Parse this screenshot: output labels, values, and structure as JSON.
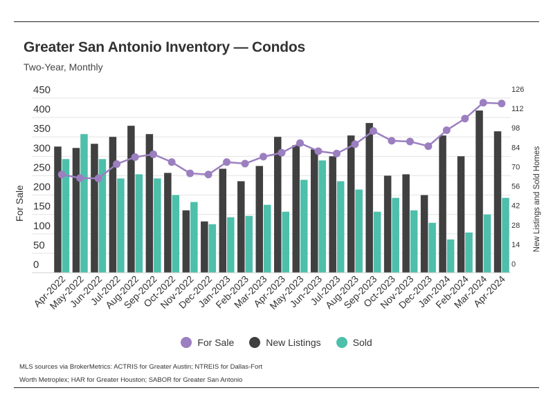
{
  "header": {
    "title": "Greater San Antonio Inventory — Condos",
    "subtitle": "Two-Year, Monthly"
  },
  "legend": {
    "items": [
      {
        "label": "For Sale",
        "color": "#9b7fc0"
      },
      {
        "label": "New Listings",
        "color": "#404040"
      },
      {
        "label": "Sold",
        "color": "#4dbfaa"
      }
    ]
  },
  "source": "MLS sources via BrokerMetrics: ACTRIS for Greater Austin; NTREIS for Dallas-Fort Worth Metroplex; HAR for Greater Houston; SABOR for Greater San Antonio",
  "chart_data": {
    "type": "bar",
    "categories": [
      "Apr-2022",
      "May-2022",
      "Jun-2022",
      "Jul-2022",
      "Aug-2022",
      "Sep-2022",
      "Oct-2022",
      "Nov-2022",
      "Dec-2022",
      "Jan-2023",
      "Feb-2023",
      "Mar-2023",
      "Apr-2023",
      "May-2023",
      "Jun-2023",
      "Jul-2023",
      "Aug-2023",
      "Sep-2023",
      "Oct-2023",
      "Nov-2023",
      "Dec-2023",
      "Jan-2024",
      "Feb-2024",
      "Mar-2024",
      "Apr-2024"
    ],
    "series": [
      {
        "name": "For Sale",
        "type": "line",
        "axis": "left",
        "color": "#9b7fc0",
        "values": [
          253,
          244,
          243,
          280,
          298,
          305,
          285,
          256,
          253,
          285,
          281,
          299,
          309,
          334,
          313,
          307,
          331,
          365,
          340,
          338,
          326,
          367,
          397,
          438,
          436
        ]
      },
      {
        "name": "New Listings",
        "type": "bar",
        "axis": "right",
        "color": "#404040",
        "values": [
          91,
          90,
          93,
          98,
          106,
          100,
          72,
          45,
          37,
          75,
          66,
          77,
          98,
          92,
          89,
          84,
          99,
          108,
          70,
          71,
          56,
          99,
          84,
          117,
          102
        ]
      },
      {
        "name": "Sold",
        "type": "bar",
        "axis": "right",
        "color": "#4dbfaa",
        "values": [
          82,
          100,
          82,
          68,
          71,
          68,
          56,
          51,
          35,
          40,
          41,
          49,
          44,
          67,
          81,
          66,
          60,
          44,
          54,
          45,
          36,
          24,
          29,
          42,
          54
        ]
      }
    ],
    "ylabel": "For Sale",
    "y2label": "New Listings and Sold Homes",
    "ylim": [
      0,
      450
    ],
    "y2lim": [
      0,
      126
    ],
    "yticks": [
      "0",
      "50",
      "100",
      "150",
      "200",
      "250",
      "300",
      "350",
      "400",
      "450"
    ],
    "y2ticks": [
      "0",
      "14",
      "28",
      "42",
      "56",
      "70",
      "84",
      "98",
      "112",
      "126"
    ],
    "grid": true,
    "legend_position": "bottom"
  }
}
